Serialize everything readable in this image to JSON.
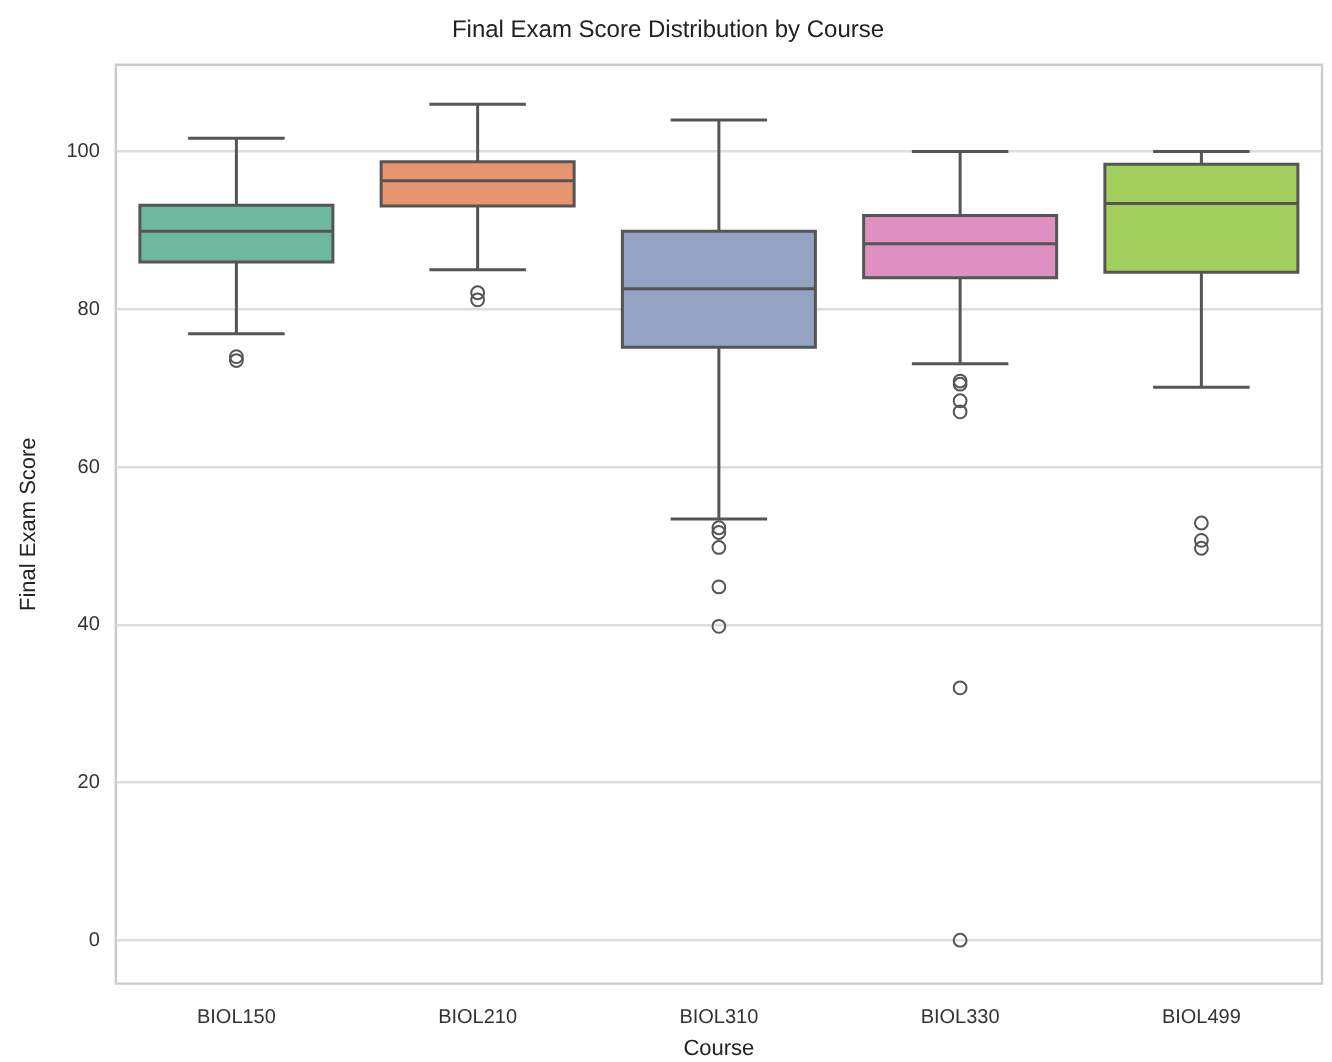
{
  "chart_data": {
    "type": "box",
    "title": "Final Exam Score Distribution by Course",
    "xlabel": "Course",
    "ylabel": "Final Exam Score",
    "categories": [
      "BIOL150",
      "BIOL210",
      "BIOL310",
      "BIOL330",
      "BIOL499"
    ],
    "colors": [
      "#6fb8a0",
      "#e8946f",
      "#93a3c4",
      "#dd90c1",
      "#a2cf5e"
    ],
    "boxes": [
      {
        "low": 76.9,
        "q1": 86.0,
        "median": 89.9,
        "q3": 93.2,
        "high": 101.7,
        "outliers": [
          73.5,
          74.0
        ]
      },
      {
        "low": 85.0,
        "q1": 93.1,
        "median": 96.3,
        "q3": 98.7,
        "high": 106.0,
        "outliers": [
          82.1,
          81.2
        ]
      },
      {
        "low": 53.4,
        "q1": 75.2,
        "median": 82.6,
        "q3": 89.9,
        "high": 104.0,
        "outliers": [
          52.3,
          51.7,
          49.8,
          44.8,
          39.8
        ]
      },
      {
        "low": 73.1,
        "q1": 84.0,
        "median": 88.3,
        "q3": 91.9,
        "high": 100.0,
        "outliers": [
          70.9,
          70.5,
          68.4,
          67.0,
          32.0,
          0.0
        ]
      },
      {
        "low": 70.1,
        "q1": 84.7,
        "median": 93.4,
        "q3": 98.4,
        "high": 100.0,
        "outliers": [
          52.9,
          50.7,
          49.7
        ]
      }
    ],
    "ylim": [
      -5.5,
      111
    ],
    "yticks": [
      0,
      20,
      40,
      60,
      80,
      100
    ],
    "grid": "y",
    "marker": "circle",
    "legend": false
  }
}
